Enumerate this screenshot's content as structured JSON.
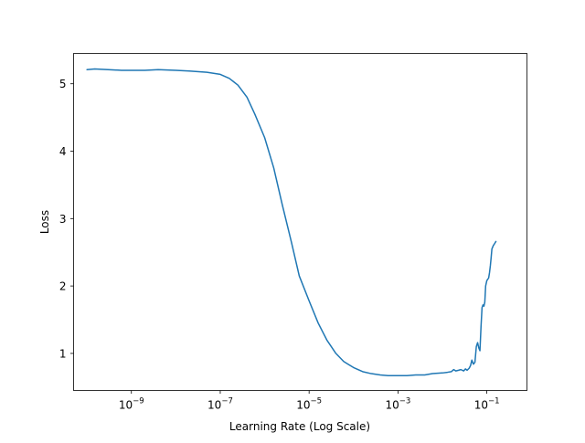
{
  "chart_data": {
    "type": "line",
    "title": "",
    "xlabel": "Learning Rate (Log Scale)",
    "ylabel": "Loss",
    "x_scale": "log",
    "grid": false,
    "legend": "none",
    "xlim": [
      5e-11,
      0.8
    ],
    "ylim": [
      0.45,
      5.45
    ],
    "x_ticks": [
      {
        "value": 1e-09,
        "base": "10",
        "exp": "−9"
      },
      {
        "value": 1e-07,
        "base": "10",
        "exp": "−7"
      },
      {
        "value": 1e-05,
        "base": "10",
        "exp": "−5"
      },
      {
        "value": 0.001,
        "base": "10",
        "exp": "−3"
      },
      {
        "value": 0.1,
        "base": "10",
        "exp": "−1"
      }
    ],
    "y_ticks": [
      {
        "value": 1,
        "label": "1"
      },
      {
        "value": 2,
        "label": "2"
      },
      {
        "value": 3,
        "label": "3"
      },
      {
        "value": 4,
        "label": "4"
      },
      {
        "value": 5,
        "label": "5"
      }
    ],
    "series": [
      {
        "color": "#1f77b4",
        "x": [
          1e-10,
          1.5e-10,
          3e-10,
          6e-10,
          1e-09,
          2e-09,
          4e-09,
          1e-08,
          2e-08,
          5e-08,
          1e-07,
          1.6e-07,
          2.5e-07,
          4e-07,
          6e-07,
          1e-06,
          1.6e-06,
          2.5e-06,
          4e-06,
          6e-06,
          1e-05,
          1.6e-05,
          2.5e-05,
          4e-05,
          6e-05,
          0.0001,
          0.00016,
          0.00025,
          0.0004,
          0.0006,
          0.001,
          0.0016,
          0.0025,
          0.004,
          0.006,
          0.01,
          0.013,
          0.016,
          0.018,
          0.02,
          0.023,
          0.026,
          0.03,
          0.033,
          0.036,
          0.04,
          0.043,
          0.046,
          0.05,
          0.054,
          0.058,
          0.062,
          0.066,
          0.07,
          0.074,
          0.078,
          0.082,
          0.086,
          0.09,
          0.094,
          0.1,
          0.105,
          0.11,
          0.115,
          0.12,
          0.125,
          0.13,
          0.14,
          0.15,
          0.16
        ],
        "y": [
          5.21,
          5.22,
          5.21,
          5.2,
          5.2,
          5.2,
          5.21,
          5.2,
          5.19,
          5.17,
          5.14,
          5.08,
          4.98,
          4.8,
          4.55,
          4.2,
          3.75,
          3.2,
          2.65,
          2.15,
          1.78,
          1.45,
          1.2,
          1.0,
          0.88,
          0.79,
          0.73,
          0.7,
          0.68,
          0.67,
          0.67,
          0.67,
          0.68,
          0.68,
          0.7,
          0.71,
          0.72,
          0.73,
          0.76,
          0.74,
          0.75,
          0.76,
          0.74,
          0.77,
          0.75,
          0.78,
          0.82,
          0.9,
          0.84,
          0.87,
          1.1,
          1.16,
          1.08,
          1.04,
          1.4,
          1.68,
          1.72,
          1.7,
          1.76,
          2.0,
          2.08,
          2.1,
          2.12,
          2.2,
          2.3,
          2.42,
          2.55,
          2.6,
          2.63,
          2.66
        ]
      }
    ]
  }
}
